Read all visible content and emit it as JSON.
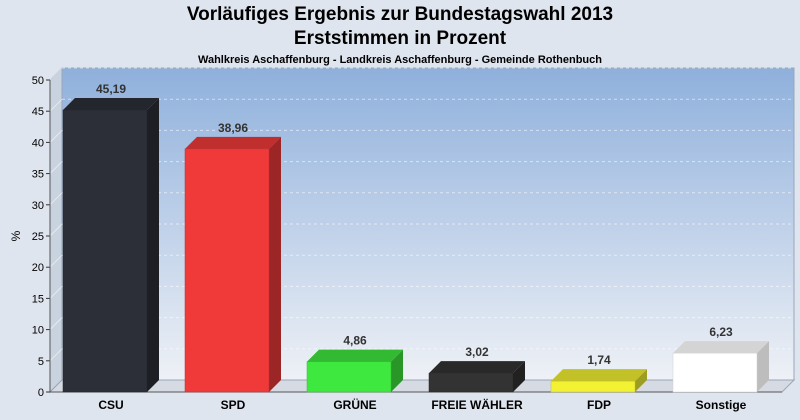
{
  "chart_data": {
    "type": "bar",
    "title": "Vorläufiges Ergebnis zur Bundestagswahl 2013",
    "title2": "Erststimmen in Prozent",
    "subtitle": "Wahlkreis Aschaffenburg - Landkreis Aschaffenburg - Gemeinde Rothenbuch",
    "ylabel": "%",
    "ylim": [
      0,
      50
    ],
    "yticks": [
      0,
      5,
      10,
      15,
      20,
      25,
      30,
      35,
      40,
      45,
      50
    ],
    "grid": true,
    "categories": [
      "CSU",
      "SPD",
      "GRÜNE",
      "FREIE WÄHLER",
      "FDP",
      "Sonstige"
    ],
    "values": [
      45.19,
      38.96,
      4.86,
      3.02,
      1.74,
      6.23
    ],
    "value_labels": [
      "45,19",
      "38,96",
      "4,86",
      "3,02",
      "1,74",
      "6,23"
    ],
    "colors": [
      "#2c2f38",
      "#f03a3a",
      "#3ee83e",
      "#333333",
      "#f2f232",
      "#ffffff"
    ]
  }
}
